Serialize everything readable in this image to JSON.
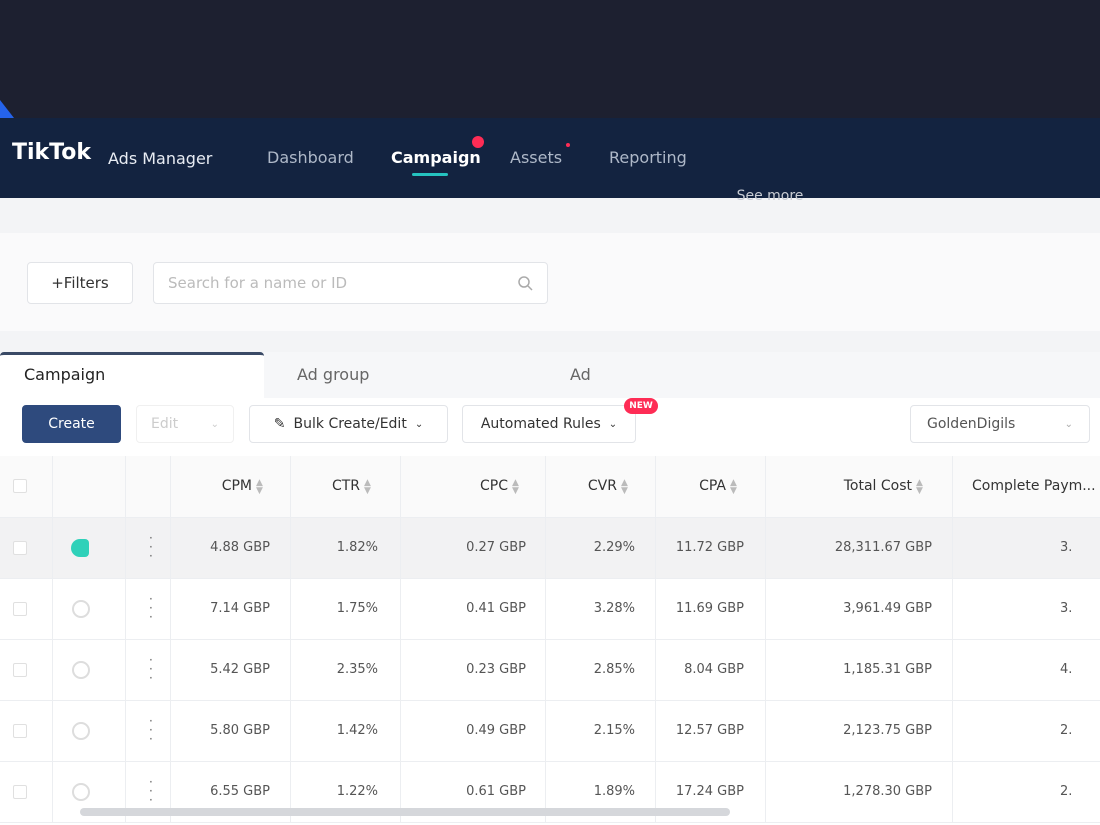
{
  "header": {
    "brand": "TikTok",
    "product": "Ads Manager",
    "nav": [
      "Dashboard",
      "Campaign",
      "Assets",
      "Reporting"
    ]
  },
  "see_more": "See more",
  "toolbar": {
    "filters": "+Filters",
    "search_placeholder": "Search for a name or ID"
  },
  "tabs": [
    "Campaign",
    "Ad group",
    "Ad"
  ],
  "actions": {
    "create": "Create",
    "edit": "Edit",
    "bulk": "Bulk Create/Edit",
    "rules": "Automated Rules",
    "new_badge": "NEW",
    "account": "GoldenDigils"
  },
  "table": {
    "columns": [
      "CPM",
      "CTR",
      "CPC",
      "CVR",
      "CPA",
      "Total Cost",
      "Complete Paym..."
    ],
    "rows": [
      [
        "4.88 GBP",
        "1.82%",
        "0.27 GBP",
        "2.29%",
        "11.72 GBP",
        "28,311.67 GBP",
        "3."
      ],
      [
        "7.14 GBP",
        "1.75%",
        "0.41 GBP",
        "3.28%",
        "11.69 GBP",
        "3,961.49 GBP",
        "3."
      ],
      [
        "5.42 GBP",
        "2.35%",
        "0.23 GBP",
        "2.85%",
        "8.04 GBP",
        "1,185.31 GBP",
        "4."
      ],
      [
        "5.80 GBP",
        "1.42%",
        "0.49 GBP",
        "2.15%",
        "12.57 GBP",
        "2,123.75 GBP",
        "2."
      ],
      [
        "6.55 GBP",
        "1.22%",
        "0.61 GBP",
        "1.89%",
        "17.24 GBP",
        "1,278.30 GBP",
        "2."
      ]
    ]
  }
}
